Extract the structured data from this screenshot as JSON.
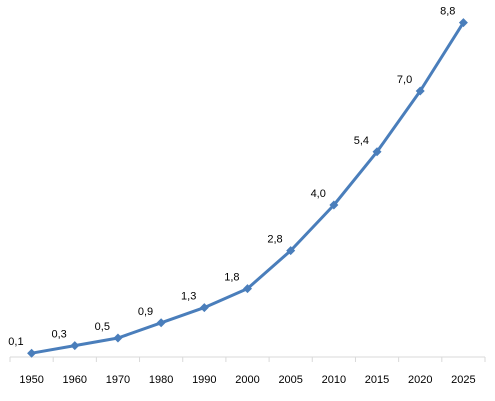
{
  "chart_data": {
    "type": "line",
    "categories": [
      "1950",
      "1960",
      "1970",
      "1980",
      "1990",
      "2000",
      "2005",
      "2010",
      "2015",
      "2020",
      "2025"
    ],
    "series": [
      {
        "values": [
          0.1,
          0.3,
          0.5,
          0.9,
          1.3,
          1.8,
          2.8,
          4.0,
          5.4,
          7.0,
          8.8
        ],
        "color": "#4a7ebb",
        "marker": "diamond"
      }
    ],
    "data_labels": [
      "0,1",
      "0,3",
      "0,5",
      "0,9",
      "1,3",
      "1,8",
      "2,8",
      "4,0",
      "5,4",
      "7,0",
      "8,8"
    ],
    "ylim": [
      0,
      9
    ],
    "grid": false,
    "legend": "none",
    "y_axis_visible": false
  }
}
